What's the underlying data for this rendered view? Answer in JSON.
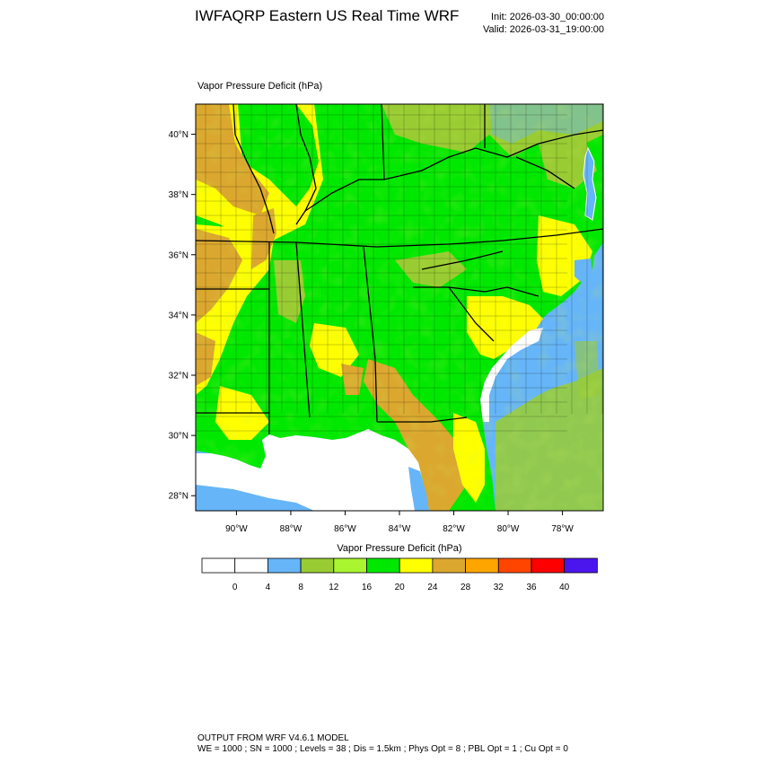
{
  "header": {
    "title": "IWFAQRP Eastern US Real Time WRF",
    "init": "Init: 2026-03-30_00:00:00",
    "valid": "Valid: 2026-03-31_19:00:00"
  },
  "map": {
    "field_title": "Vapor Pressure Deficit   (hPa)",
    "lat_labels": [
      "40°N",
      "38°N",
      "36°N",
      "34°N",
      "32°N",
      "30°N",
      "28°N"
    ],
    "lon_labels": [
      "90°W",
      "88°W",
      "86°W",
      "84°W",
      "82°W",
      "80°W",
      "78°W"
    ],
    "lat_values": [
      40,
      38,
      36,
      34,
      32,
      30,
      28
    ],
    "lon_values": [
      -90,
      -88,
      -86,
      -84,
      -82,
      -80,
      -78
    ],
    "lat_range": [
      27.5,
      41.0
    ],
    "lon_range": [
      -91.5,
      -76.5
    ],
    "ocean_color": "#66b5f8",
    "land_base_color": "#00e800"
  },
  "colorbar": {
    "title": "Vapor Pressure Deficit  (hPa)",
    "labels": [
      "0",
      "4",
      "8",
      "12",
      "16",
      "20",
      "24",
      "28",
      "32",
      "36",
      "40"
    ],
    "colors": [
      "#ffffff",
      "#ffffff",
      "#66b5f8",
      "#99cc33",
      "#a8f530",
      "#00e800",
      "#ffff00",
      "#dba72e",
      "#ffa500",
      "#ff4500",
      "#ff0000",
      "#4b16ee"
    ]
  },
  "footer": {
    "line1": "OUTPUT FROM WRF V4.6.1 MODEL",
    "line2": "WE = 1000 ; SN = 1000 ; Levels = 38 ; Dis = 1.5km ; Phys Opt = 8 ; PBL Opt = 1 ; Cu Opt = 0"
  }
}
